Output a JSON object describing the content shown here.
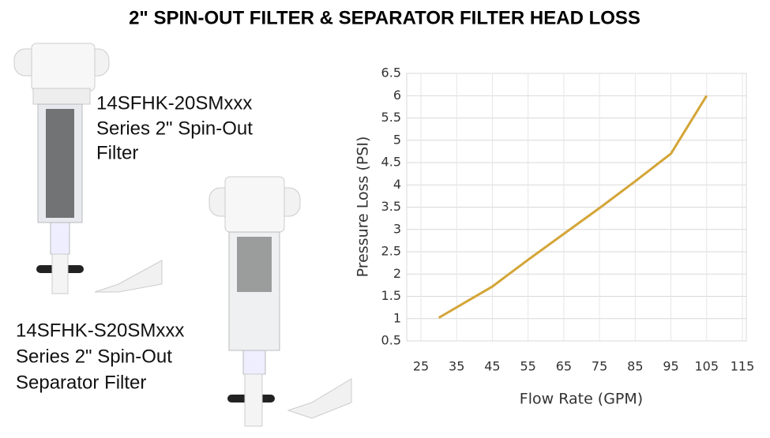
{
  "chart_data": {
    "type": "line",
    "title": "2\" SPIN-OUT FILTER & SEPARATOR FILTER HEAD LOSS",
    "x_label": "Flow Rate (GPM)",
    "y_label": "Pressure Loss (PSI)",
    "x": [
      30,
      45,
      55,
      65,
      75,
      85,
      95,
      105
    ],
    "series": [
      {
        "name": "Pressure Loss",
        "color": "#d4a537",
        "values": [
          1.02,
          1.72,
          2.32,
          2.9,
          3.48,
          4.08,
          4.7,
          6.0
        ]
      }
    ],
    "xlim": [
      25,
      115
    ],
    "xticks": [
      25,
      35,
      45,
      55,
      65,
      75,
      85,
      95,
      105,
      115
    ],
    "ylim": [
      0.5,
      6.5
    ],
    "yticks": [
      0.5,
      1,
      1.5,
      2,
      2.5,
      3,
      3.5,
      4,
      4.5,
      5,
      5.5,
      6,
      6.5
    ],
    "grid": true
  },
  "products": [
    {
      "lines": [
        "14SFHK-20SMxxx",
        "Series 2\" Spin-Out",
        "Filter"
      ]
    },
    {
      "lines": [
        "14SFHK-S20SMxxx",
        "Series 2\" Spin-Out",
        "Separator Filter"
      ]
    }
  ]
}
